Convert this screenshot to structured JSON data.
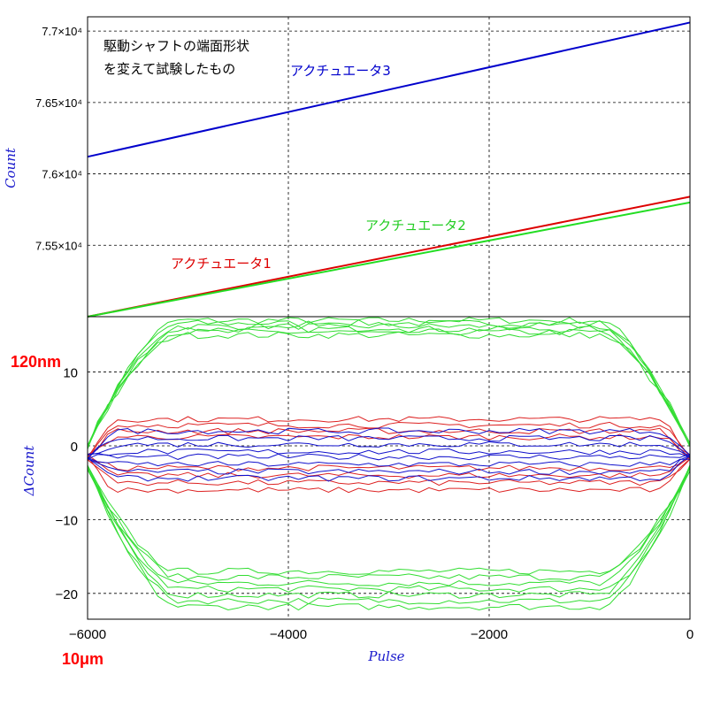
{
  "chart_data": [
    {
      "type": "line",
      "panel": "top",
      "ylabel": "Count",
      "xlim": [
        -6000,
        0
      ],
      "ylim": [
        75000,
        77100
      ],
      "yticks": [
        {
          "value": 77000,
          "label": "7.7×10⁴"
        },
        {
          "value": 76500,
          "label": "7.65×10⁴"
        },
        {
          "value": 76000,
          "label": "7.6×10⁴"
        },
        {
          "value": 75500,
          "label": "7.55×10⁴"
        }
      ],
      "grid": true,
      "series": [
        {
          "name": "アクチュエータ1",
          "color": "#dd0000",
          "x": [
            -6000,
            0
          ],
          "y": [
            75000,
            75840
          ]
        },
        {
          "name": "アクチュエータ2",
          "color": "#22dd22",
          "x": [
            -6000,
            0
          ],
          "y": [
            75000,
            75800
          ]
        },
        {
          "name": "アクチュエータ3",
          "color": "#0000cc",
          "x": [
            -6000,
            0
          ],
          "y": [
            76120,
            77060
          ]
        }
      ],
      "annotations": [
        {
          "text": "駆動シャフトの端面形状",
          "color": "#000000"
        },
        {
          "text": "を変えて試験したもの",
          "color": "#000000"
        },
        {
          "text": "アクチュエータ3",
          "color": "#0000cc"
        },
        {
          "text": "アクチュエータ2",
          "color": "#22cc22"
        },
        {
          "text": "アクチュエータ1",
          "color": "#dd0000"
        }
      ]
    },
    {
      "type": "line",
      "panel": "bottom",
      "xlabel": "Pulse",
      "ylabel": "ΔCount",
      "xlim": [
        -6000,
        0
      ],
      "ylim": [
        -23.5,
        17.5
      ],
      "xticks": [
        -6000,
        -4000,
        -2000,
        0
      ],
      "xtick_labels": [
        "−6000",
        "−4000",
        "−2000",
        "0"
      ],
      "yticks": [
        10,
        0,
        -10,
        -20
      ],
      "ytick_labels": [
        "10",
        "0",
        "−10",
        "−20"
      ],
      "grid": true,
      "series": [
        {
          "name": "",
          "color": "#33dd33",
          "loop_upper_levels": [
            17.0,
            16.6,
            16.2,
            15.8,
            15.4,
            15.0
          ],
          "loop_lower_levels": [
            -17.0,
            -17.8,
            -18.6,
            -19.4,
            -20.2,
            -21.0,
            -21.8
          ]
        },
        {
          "name": "",
          "color": "#dd2222",
          "loop_upper_levels": [
            3.6,
            2.8,
            2.0,
            1.2
          ],
          "loop_lower_levels": [
            -3.0,
            -4.0,
            -5.0,
            -6.0
          ]
        },
        {
          "name": "",
          "color": "#1111cc",
          "loop_upper_levels": [
            2.0,
            1.0,
            0.2,
            -0.8
          ],
          "loop_lower_levels": [
            -1.5,
            -2.5,
            -3.5,
            -4.4
          ]
        }
      ]
    }
  ],
  "markers": {
    "y_scale": "120nm",
    "x_scale": "10μm"
  }
}
